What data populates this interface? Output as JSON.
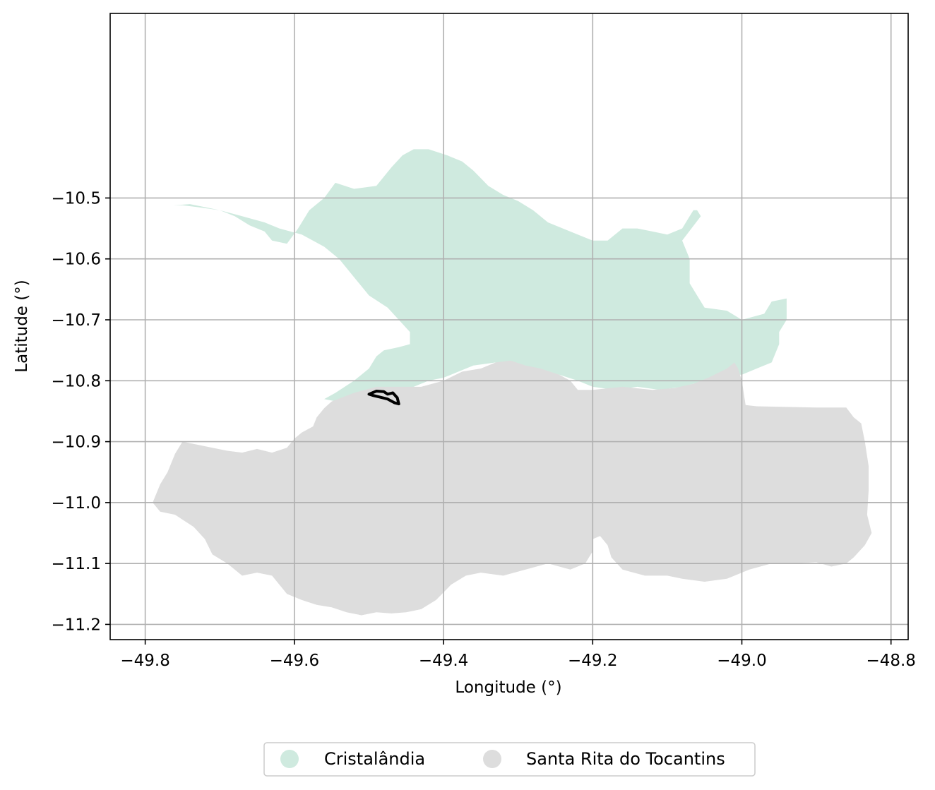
{
  "map": {
    "xlabel": "Longitude (°)",
    "ylabel": "Latitude (°)",
    "xlim": [
      -49.847,
      -48.777
    ],
    "ylim": [
      -11.225,
      -10.197
    ],
    "x_ticks": [
      -49.8,
      -49.6,
      -49.4,
      -49.2,
      -49.0,
      -48.8
    ],
    "x_tick_labels": [
      "−49.8",
      "−49.6",
      "−49.4",
      "−49.2",
      "−49.0",
      "−48.8"
    ],
    "y_ticks": [
      -10.5,
      -10.6,
      -10.7,
      -10.8,
      -10.9,
      -11.0,
      -11.1,
      -11.2
    ],
    "y_tick_labels": [
      "−10.5",
      "−10.6",
      "−10.7",
      "−10.8",
      "−10.9",
      "−11.0",
      "−11.1",
      "−11.2"
    ],
    "grid": true,
    "legend_placement": "bottom-center, below axes",
    "legend": [
      {
        "label": "Cristalândia",
        "color": "#cfeadf"
      },
      {
        "label": "Santa Rita do Tocantins",
        "color": "#dddddd"
      }
    ],
    "regions": [
      {
        "name": "Cristalândia",
        "color": "#cfeadf",
        "coords": [
          [
            -49.762,
            -10.512
          ],
          [
            -49.74,
            -10.51
          ],
          [
            -49.72,
            -10.515
          ],
          [
            -49.7,
            -10.52
          ],
          [
            -49.68,
            -10.53
          ],
          [
            -49.66,
            -10.545
          ],
          [
            -49.64,
            -10.555
          ],
          [
            -49.63,
            -10.57
          ],
          [
            -49.61,
            -10.575
          ],
          [
            -49.595,
            -10.55
          ],
          [
            -49.58,
            -10.52
          ],
          [
            -49.56,
            -10.5
          ],
          [
            -49.545,
            -10.475
          ],
          [
            -49.52,
            -10.485
          ],
          [
            -49.49,
            -10.48
          ],
          [
            -49.47,
            -10.45
          ],
          [
            -49.455,
            -10.43
          ],
          [
            -49.44,
            -10.42
          ],
          [
            -49.42,
            -10.42
          ],
          [
            -49.395,
            -10.43
          ],
          [
            -49.375,
            -10.44
          ],
          [
            -49.36,
            -10.455
          ],
          [
            -49.34,
            -10.48
          ],
          [
            -49.32,
            -10.495
          ],
          [
            -49.3,
            -10.505
          ],
          [
            -49.28,
            -10.52
          ],
          [
            -49.26,
            -10.54
          ],
          [
            -49.24,
            -10.55
          ],
          [
            -49.22,
            -10.56
          ],
          [
            -49.2,
            -10.57
          ],
          [
            -49.18,
            -10.57
          ],
          [
            -49.16,
            -10.55
          ],
          [
            -49.14,
            -10.55
          ],
          [
            -49.12,
            -10.555
          ],
          [
            -49.1,
            -10.56
          ],
          [
            -49.08,
            -10.55
          ],
          [
            -49.07,
            -10.53
          ],
          [
            -49.065,
            -10.52
          ],
          [
            -49.06,
            -10.52
          ],
          [
            -49.055,
            -10.53
          ],
          [
            -49.08,
            -10.57
          ],
          [
            -49.07,
            -10.6
          ],
          [
            -49.07,
            -10.64
          ],
          [
            -49.06,
            -10.66
          ],
          [
            -49.05,
            -10.68
          ],
          [
            -49.02,
            -10.685
          ],
          [
            -49.0,
            -10.7
          ],
          [
            -48.97,
            -10.69
          ],
          [
            -48.96,
            -10.67
          ],
          [
            -48.94,
            -10.665
          ],
          [
            -48.94,
            -10.7
          ],
          [
            -48.95,
            -10.72
          ],
          [
            -48.95,
            -10.74
          ],
          [
            -48.96,
            -10.77
          ],
          [
            -48.98,
            -10.78
          ],
          [
            -49.0,
            -10.79
          ],
          [
            -49.02,
            -10.79
          ],
          [
            -49.05,
            -10.8
          ],
          [
            -49.08,
            -10.81
          ],
          [
            -49.11,
            -10.815
          ],
          [
            -49.14,
            -10.81
          ],
          [
            -49.17,
            -10.815
          ],
          [
            -49.2,
            -10.81
          ],
          [
            -49.22,
            -10.8
          ],
          [
            -49.245,
            -10.79
          ],
          [
            -49.27,
            -10.785
          ],
          [
            -49.3,
            -10.775
          ],
          [
            -49.33,
            -10.77
          ],
          [
            -49.36,
            -10.775
          ],
          [
            -49.38,
            -10.785
          ],
          [
            -49.4,
            -10.795
          ],
          [
            -49.42,
            -10.8
          ],
          [
            -49.44,
            -10.81
          ],
          [
            -49.46,
            -10.82
          ],
          [
            -49.48,
            -10.83
          ],
          [
            -49.5,
            -10.83
          ],
          [
            -49.52,
            -10.835
          ],
          [
            -49.54,
            -10.835
          ],
          [
            -49.56,
            -10.83
          ],
          [
            -49.545,
            -10.82
          ],
          [
            -49.52,
            -10.8
          ],
          [
            -49.5,
            -10.78
          ],
          [
            -49.49,
            -10.76
          ],
          [
            -49.48,
            -10.75
          ],
          [
            -49.46,
            -10.745
          ],
          [
            -49.445,
            -10.74
          ],
          [
            -49.445,
            -10.72
          ],
          [
            -49.46,
            -10.7
          ],
          [
            -49.475,
            -10.68
          ],
          [
            -49.5,
            -10.66
          ],
          [
            -49.52,
            -10.63
          ],
          [
            -49.54,
            -10.6
          ],
          [
            -49.56,
            -10.58
          ],
          [
            -49.59,
            -10.56
          ],
          [
            -49.62,
            -10.55
          ],
          [
            -49.64,
            -10.54
          ],
          [
            -49.67,
            -10.53
          ],
          [
            -49.7,
            -10.52
          ],
          [
            -49.73,
            -10.515
          ],
          [
            -49.75,
            -10.512
          ]
        ]
      },
      {
        "name": "Santa Rita do Tocantins",
        "color": "#dddddd",
        "coords": [
          [
            -49.55,
            -10.834
          ],
          [
            -49.52,
            -10.82
          ],
          [
            -49.49,
            -10.81
          ],
          [
            -49.46,
            -10.81
          ],
          [
            -49.43,
            -10.81
          ],
          [
            -49.4,
            -10.8
          ],
          [
            -49.375,
            -10.785
          ],
          [
            -49.35,
            -10.78
          ],
          [
            -49.33,
            -10.77
          ],
          [
            -49.31,
            -10.767
          ],
          [
            -49.29,
            -10.775
          ],
          [
            -49.27,
            -10.78
          ],
          [
            -49.245,
            -10.79
          ],
          [
            -49.23,
            -10.8
          ],
          [
            -49.22,
            -10.815
          ],
          [
            -49.2,
            -10.815
          ],
          [
            -49.16,
            -10.81
          ],
          [
            -49.12,
            -10.815
          ],
          [
            -49.09,
            -10.812
          ],
          [
            -49.065,
            -10.805
          ],
          [
            -49.045,
            -10.795
          ],
          [
            -49.02,
            -10.78
          ],
          [
            -49.01,
            -10.77
          ],
          [
            -49.005,
            -10.78
          ],
          [
            -49.0,
            -10.8
          ],
          [
            -48.995,
            -10.84
          ],
          [
            -48.98,
            -10.842
          ],
          [
            -48.94,
            -10.843
          ],
          [
            -48.9,
            -10.844
          ],
          [
            -48.86,
            -10.844
          ],
          [
            -48.85,
            -10.86
          ],
          [
            -48.84,
            -10.87
          ],
          [
            -48.835,
            -10.9
          ],
          [
            -48.83,
            -10.94
          ],
          [
            -48.83,
            -10.98
          ],
          [
            -48.832,
            -11.02
          ],
          [
            -48.826,
            -11.05
          ],
          [
            -48.835,
            -11.07
          ],
          [
            -48.85,
            -11.09
          ],
          [
            -48.86,
            -11.1
          ],
          [
            -48.88,
            -11.105
          ],
          [
            -48.9,
            -11.098
          ],
          [
            -48.93,
            -11.1
          ],
          [
            -48.96,
            -11.1
          ],
          [
            -48.99,
            -11.11
          ],
          [
            -49.02,
            -11.125
          ],
          [
            -49.05,
            -11.13
          ],
          [
            -49.08,
            -11.125
          ],
          [
            -49.1,
            -11.12
          ],
          [
            -49.13,
            -11.12
          ],
          [
            -49.16,
            -11.11
          ],
          [
            -49.175,
            -11.09
          ],
          [
            -49.18,
            -11.07
          ],
          [
            -49.19,
            -11.055
          ],
          [
            -49.2,
            -11.06
          ],
          [
            -49.2,
            -11.08
          ],
          [
            -49.21,
            -11.1
          ],
          [
            -49.23,
            -11.11
          ],
          [
            -49.26,
            -11.1
          ],
          [
            -49.29,
            -11.11
          ],
          [
            -49.32,
            -11.12
          ],
          [
            -49.35,
            -11.115
          ],
          [
            -49.37,
            -11.12
          ],
          [
            -49.39,
            -11.135
          ],
          [
            -49.41,
            -11.16
          ],
          [
            -49.43,
            -11.175
          ],
          [
            -49.45,
            -11.18
          ],
          [
            -49.47,
            -11.182
          ],
          [
            -49.49,
            -11.18
          ],
          [
            -49.51,
            -11.185
          ],
          [
            -49.53,
            -11.18
          ],
          [
            -49.55,
            -11.172
          ],
          [
            -49.57,
            -11.168
          ],
          [
            -49.59,
            -11.16
          ],
          [
            -49.61,
            -11.15
          ],
          [
            -49.63,
            -11.12
          ],
          [
            -49.65,
            -11.115
          ],
          [
            -49.67,
            -11.12
          ],
          [
            -49.69,
            -11.1
          ],
          [
            -49.71,
            -11.085
          ],
          [
            -49.72,
            -11.06
          ],
          [
            -49.735,
            -11.04
          ],
          [
            -49.76,
            -11.02
          ],
          [
            -49.78,
            -11.015
          ],
          [
            -49.79,
            -11.0
          ],
          [
            -49.78,
            -10.97
          ],
          [
            -49.77,
            -10.95
          ],
          [
            -49.76,
            -10.92
          ],
          [
            -49.75,
            -10.9
          ],
          [
            -49.73,
            -10.905
          ],
          [
            -49.71,
            -10.91
          ],
          [
            -49.69,
            -10.915
          ],
          [
            -49.67,
            -10.918
          ],
          [
            -49.65,
            -10.912
          ],
          [
            -49.63,
            -10.918
          ],
          [
            -49.61,
            -10.91
          ],
          [
            -49.6,
            -10.895
          ],
          [
            -49.59,
            -10.885
          ],
          [
            -49.575,
            -10.875
          ],
          [
            -49.57,
            -10.86
          ],
          [
            -49.56,
            -10.845
          ]
        ]
      }
    ],
    "outline_path": [
      [
        -49.5,
        -10.822
      ],
      [
        -49.49,
        -10.817
      ],
      [
        -49.48,
        -10.818
      ],
      [
        -49.475,
        -10.822
      ],
      [
        -49.468,
        -10.82
      ],
      [
        -49.462,
        -10.828
      ],
      [
        -49.46,
        -10.838
      ],
      [
        -49.466,
        -10.836
      ],
      [
        -49.475,
        -10.83
      ],
      [
        -49.485,
        -10.827
      ],
      [
        -49.495,
        -10.824
      ],
      [
        -49.5,
        -10.822
      ]
    ],
    "outline_color": "#000000"
  }
}
